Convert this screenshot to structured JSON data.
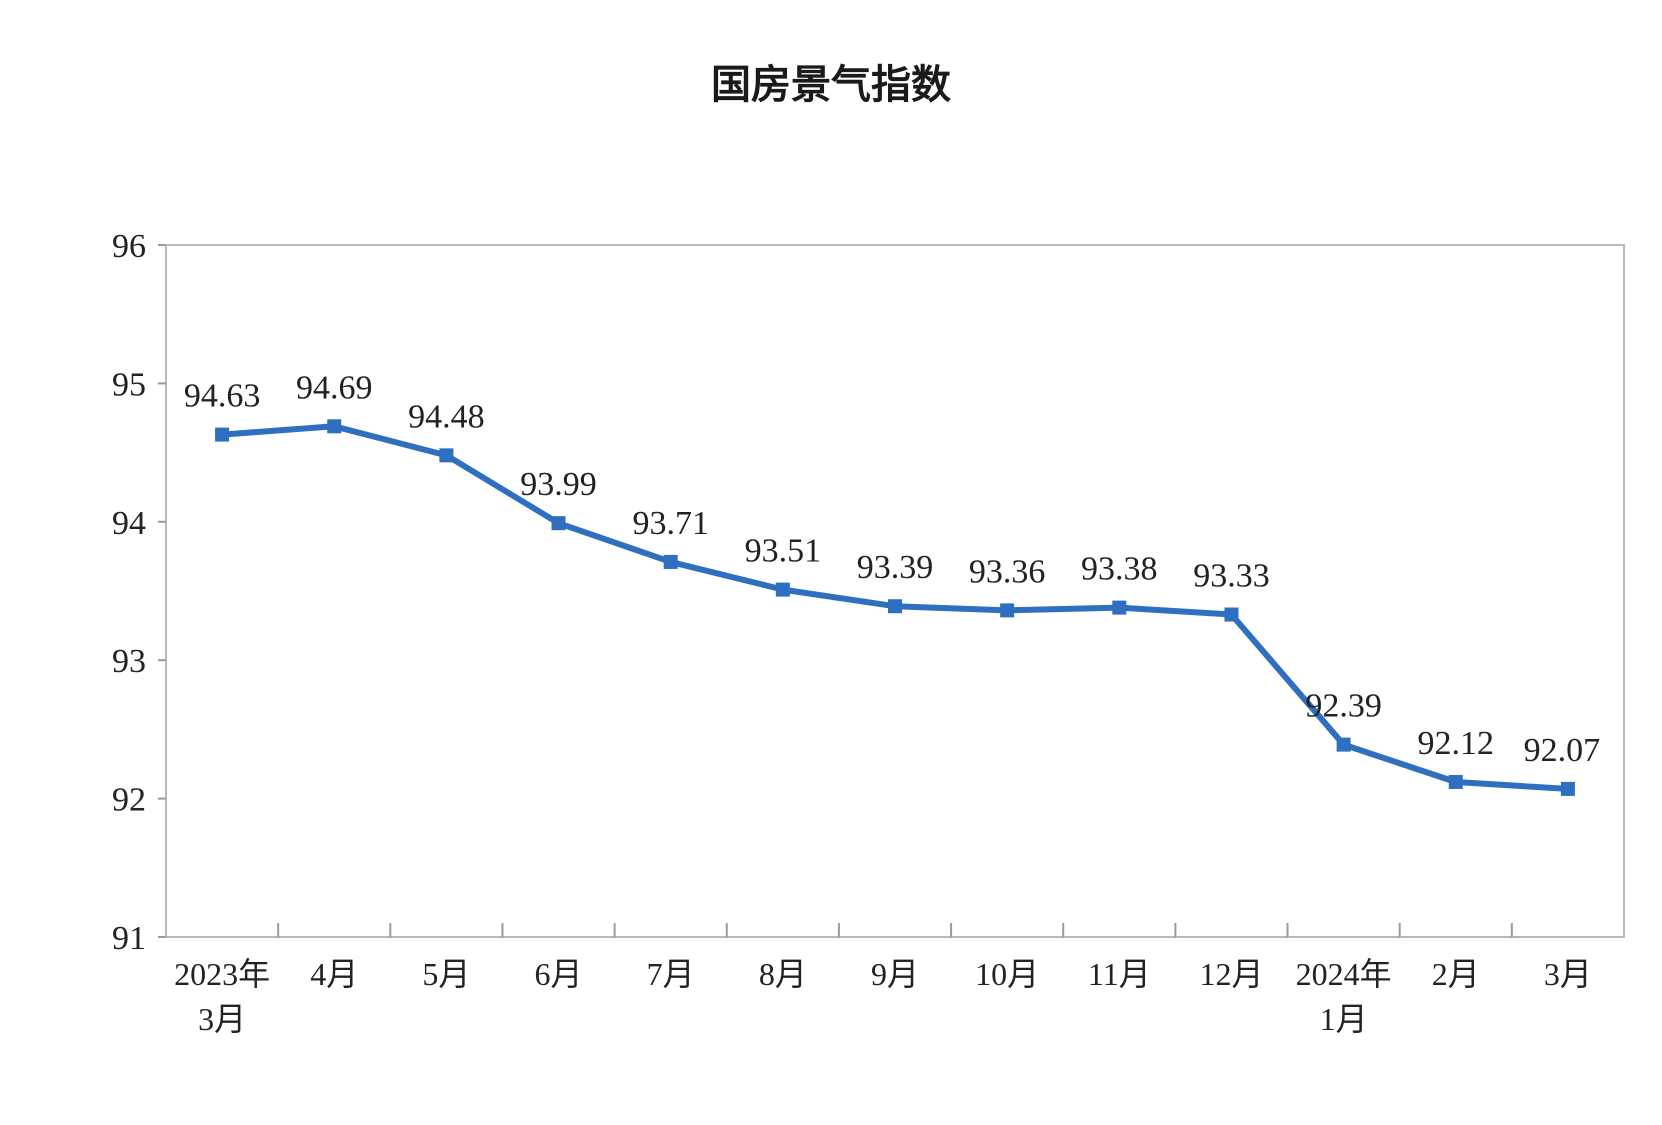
{
  "chart_data": {
    "type": "line",
    "title": "国房景气指数",
    "xlabel": "",
    "ylabel": "",
    "categories": [
      [
        "2023年",
        "3月"
      ],
      [
        "4月"
      ],
      [
        "5月"
      ],
      [
        "6月"
      ],
      [
        "7月"
      ],
      [
        "8月"
      ],
      [
        "9月"
      ],
      [
        "10月"
      ],
      [
        "11月"
      ],
      [
        "12月"
      ],
      [
        "2024年",
        "1月"
      ],
      [
        "2月"
      ],
      [
        "3月"
      ]
    ],
    "series": [
      {
        "values": [
          94.63,
          94.69,
          94.48,
          93.99,
          93.71,
          93.51,
          93.39,
          93.36,
          93.38,
          93.33,
          92.39,
          92.12,
          92.07
        ],
        "labels": [
          "94.63",
          "94.69",
          "94.48",
          "93.99",
          "93.71",
          "93.51",
          "93.39",
          "93.36",
          "93.38",
          "93.33",
          "92.39",
          "92.12",
          "92.07"
        ],
        "color": "#2e6fc0"
      }
    ],
    "ylim": [
      91,
      96
    ],
    "yticks": [
      "91",
      "92",
      "93",
      "94",
      "95",
      "96"
    ],
    "grid": false,
    "legend": "none"
  }
}
